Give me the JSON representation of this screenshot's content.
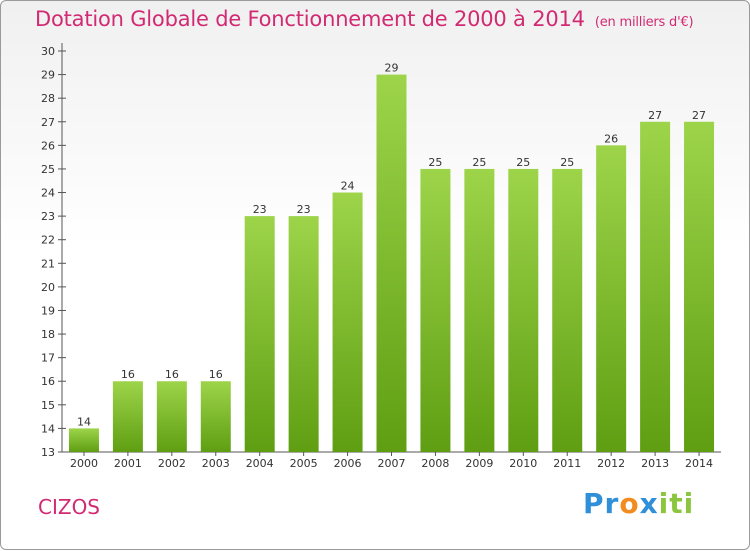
{
  "header": {
    "title": "Dotation Globale de Fonctionnement de 2000 à 2014",
    "unit": "(en milliers d'€)"
  },
  "footer": {
    "commune": "CIZOS",
    "logo": [
      "Pr",
      "o",
      "x",
      "iti"
    ]
  },
  "colors": {
    "title": "#d22a72",
    "bar_light": "#9dd44a",
    "bar_dark": "#5f9e12"
  },
  "chart_data": {
    "type": "bar",
    "title": "Dotation Globale de Fonctionnement de 2000 à 2014",
    "xlabel": "",
    "ylabel": "",
    "categories": [
      "2000",
      "2001",
      "2002",
      "2003",
      "2004",
      "2005",
      "2006",
      "2007",
      "2008",
      "2009",
      "2010",
      "2011",
      "2012",
      "2013",
      "2014"
    ],
    "values": [
      14,
      16,
      16,
      16,
      23,
      23,
      24,
      29,
      25,
      25,
      25,
      25,
      26,
      27,
      27
    ],
    "ylim": [
      13,
      30
    ],
    "yticks": [
      13,
      14,
      15,
      16,
      17,
      18,
      19,
      20,
      21,
      22,
      23,
      24,
      25,
      26,
      27,
      28,
      29,
      30
    ],
    "grid": false,
    "legend": "none"
  }
}
